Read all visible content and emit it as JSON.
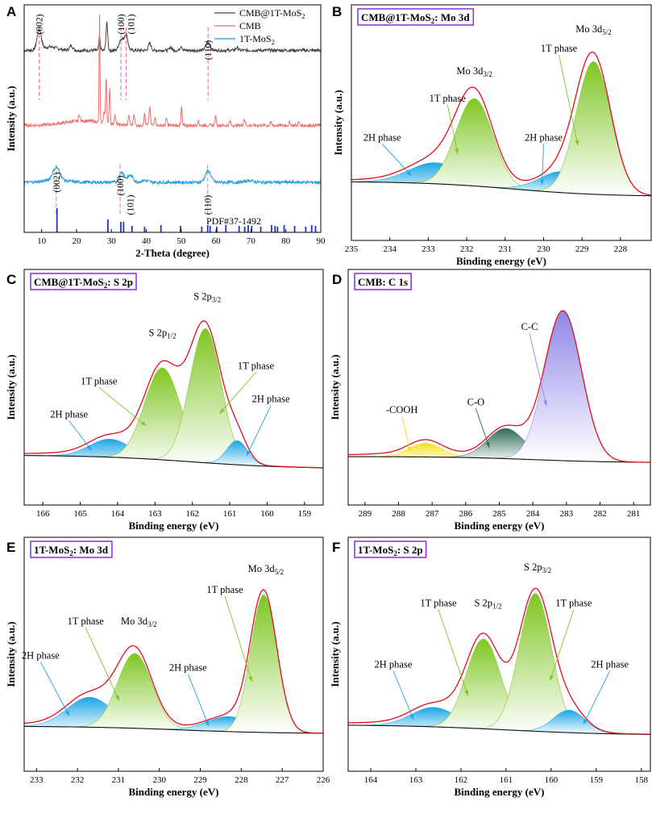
{
  "chart_data": [
    {
      "panel": "A",
      "type": "line",
      "xlabel": "2-Theta (degree)",
      "ylabel": "Intensity (a.u.)",
      "xlim": [
        5,
        90
      ],
      "xticks": [
        10,
        20,
        30,
        40,
        50,
        60,
        70,
        80,
        90
      ],
      "series": [
        {
          "name": "CMB@1T-MoS",
          "sub": "2",
          "color": "#404040",
          "offset": 0.8
        },
        {
          "name": "CMB",
          "sub": "",
          "color": "#ef6f6c",
          "offset": 0.47
        },
        {
          "name": "1T-MoS",
          "sub": "2",
          "color": "#1e9be0",
          "offset": 0.22
        }
      ],
      "peak_labels_top": [
        {
          "label": "(002)",
          "x": 9.3
        },
        {
          "label": "(100)",
          "x": 32.7
        },
        {
          "label": "(101)",
          "x": 35.6
        },
        {
          "label": "(110)",
          "x": 57.7
        }
      ],
      "peak_labels_bottom": [
        {
          "label": "(002)",
          "x": 14.2
        },
        {
          "label": "(100)",
          "x": 32.5
        },
        {
          "label": "(101)",
          "x": 35.4
        },
        {
          "label": "(110)",
          "x": 57.6
        }
      ],
      "dashed_top": [
        9.3,
        32.7,
        34.2,
        57.7
      ],
      "dashed_bottom": [
        14.2,
        32.5,
        57.6
      ],
      "reference_label": "PDF#37-1492",
      "reference_lines": [
        14.4,
        29.0,
        32.7,
        33.5,
        35.9,
        39.5,
        44.2,
        49.8,
        55.9,
        57.6,
        58.3,
        60.2,
        62.8,
        66.6,
        68.2,
        69.2,
        70.2,
        72.8,
        75.9,
        76.9,
        77.6,
        79.5,
        82.5,
        85.7,
        87.4,
        88.5
      ]
    },
    {
      "panel": "B",
      "type": "area",
      "title_main": "CMB@1T-MoS",
      "title_sub": "2",
      "title_tail": ": Mo 3d",
      "xlabel": "Binding energy (eV)",
      "ylabel": "Intensity (a.u.)",
      "xlim": [
        235,
        227.2
      ],
      "xticks": [
        235,
        234,
        233,
        232,
        231,
        230,
        229,
        228
      ],
      "ymax": 1.0,
      "background": {
        "high": 0.11,
        "low": 0.01,
        "center": 230.8,
        "width": 1.2
      },
      "peaks": [
        {
          "center": 232.8,
          "height": 0.14,
          "sigma": 0.7,
          "phase": "2H",
          "color": "#1ca6e4"
        },
        {
          "center": 231.8,
          "height": 0.58,
          "sigma": 0.48,
          "phase": "1T",
          "color": "#7fc622"
        },
        {
          "center": 229.5,
          "height": 0.14,
          "sigma": 0.6,
          "phase": "2H",
          "color": "#1ca6e4"
        },
        {
          "center": 228.7,
          "height": 0.88,
          "sigma": 0.45,
          "phase": "1T",
          "color": "#7fc622"
        }
      ],
      "labels": [
        {
          "text": "Mo 3d",
          "sub": "3/2",
          "x": 231.8,
          "y": 0.82
        },
        {
          "text": "Mo 3d",
          "sub": "5/2",
          "x": 228.7,
          "y": 1.1
        },
        {
          "text": "1T phase",
          "x": 232.5,
          "y": 0.64
        },
        {
          "text": "1T phase",
          "x": 229.6,
          "y": 0.97
        },
        {
          "text": "2H phase",
          "x": 234.2,
          "y": 0.38
        },
        {
          "text": "2H phase",
          "x": 230.0,
          "y": 0.38
        }
      ]
    },
    {
      "panel": "C",
      "type": "area",
      "title_main": "CMB@1T-MoS",
      "title_sub": "2",
      "title_tail": ": S 2p",
      "xlabel": "Binding energy (eV)",
      "ylabel": "Intensity (a.u.)",
      "xlim": [
        166.5,
        158.5
      ],
      "xticks": [
        166,
        165,
        164,
        163,
        162,
        161,
        160,
        159
      ],
      "ymax": 1.0,
      "background": {
        "high": 0.05,
        "low": -0.04,
        "center": 162.0,
        "width": 1.3
      },
      "peaks": [
        {
          "center": 164.2,
          "height": 0.12,
          "sigma": 0.55,
          "phase": "2H",
          "color": "#1ca6e4"
        },
        {
          "center": 162.8,
          "height": 0.61,
          "sigma": 0.48,
          "phase": "1T",
          "color": "#7fc622"
        },
        {
          "center": 161.65,
          "height": 0.89,
          "sigma": 0.42,
          "phase": "1T",
          "color": "#7fc622"
        },
        {
          "center": 160.8,
          "height": 0.16,
          "sigma": 0.28,
          "phase": "2H",
          "color": "#1ca6e4"
        }
      ],
      "labels": [
        {
          "text": "S 2p",
          "sub": "1/2",
          "x": 162.8,
          "y": 0.84
        },
        {
          "text": "S 2p",
          "sub": "3/2",
          "x": 161.6,
          "y": 1.08
        },
        {
          "text": "1T phase",
          "x": 164.5,
          "y": 0.52
        },
        {
          "text": "1T phase",
          "x": 160.3,
          "y": 0.62
        },
        {
          "text": "2H phase",
          "x": 165.3,
          "y": 0.3
        },
        {
          "text": "2H phase",
          "x": 159.9,
          "y": 0.4
        }
      ]
    },
    {
      "panel": "D",
      "type": "area",
      "title_main": "CMB: C 1s",
      "title_sub": "",
      "title_tail": "",
      "xlabel": "Binding energy (eV)",
      "ylabel": "Intensity (a.u.)",
      "xlim": [
        289.5,
        280.5
      ],
      "xticks": [
        289,
        288,
        287,
        286,
        285,
        284,
        283,
        282,
        281
      ],
      "ymax": 1.0,
      "background": {
        "high": 0.04,
        "low": 0.0,
        "center": 284.0,
        "width": 1.2
      },
      "peaks": [
        {
          "center": 287.2,
          "height": 0.09,
          "sigma": 0.5,
          "phase": "-COOH",
          "color": "#f2e21c"
        },
        {
          "center": 284.8,
          "height": 0.2,
          "sigma": 0.55,
          "phase": "C-O",
          "color": "#2e6a58"
        },
        {
          "center": 283.1,
          "height": 0.99,
          "sigma": 0.55,
          "phase": "C-C",
          "color": "#8f87e8"
        }
      ],
      "labels": [
        {
          "text": "-COOH",
          "x": 287.9,
          "y": 0.33
        },
        {
          "text": "C-O",
          "x": 285.7,
          "y": 0.38
        },
        {
          "text": "C-C",
          "x": 284.1,
          "y": 0.88
        }
      ]
    },
    {
      "panel": "E",
      "type": "area",
      "title_main": "1T-MoS",
      "title_sub": "2",
      "title_tail": ": Mo 3d",
      "xlabel": "Binding energy (eV)",
      "ylabel": "Intensity (a.u.)",
      "xlim": [
        233.3,
        226
      ],
      "xticks": [
        233,
        232,
        231,
        230,
        229,
        228,
        227,
        226
      ],
      "ymax": 1.0,
      "background": {
        "high": 0.02,
        "low": -0.03,
        "center": 229.5,
        "width": 1.2
      },
      "peaks": [
        {
          "center": 231.7,
          "height": 0.2,
          "sigma": 0.55,
          "phase": "2H",
          "color": "#1ca6e4"
        },
        {
          "center": 230.6,
          "height": 0.5,
          "sigma": 0.42,
          "phase": "1T",
          "color": "#7fc622"
        },
        {
          "center": 228.3,
          "height": 0.1,
          "sigma": 0.55,
          "phase": "2H",
          "color": "#1ca6e4"
        },
        {
          "center": 227.45,
          "height": 0.92,
          "sigma": 0.32,
          "phase": "1T",
          "color": "#7fc622"
        }
      ],
      "labels": [
        {
          "text": "Mo 3d",
          "sub": "3/2",
          "x": 230.5,
          "y": 0.7
        },
        {
          "text": "Mo 3d",
          "sub": "5/2",
          "x": 227.4,
          "y": 1.05
        },
        {
          "text": "1T phase",
          "x": 231.8,
          "y": 0.7
        },
        {
          "text": "1T phase",
          "x": 228.4,
          "y": 0.91
        },
        {
          "text": "2H phase",
          "x": 232.9,
          "y": 0.47
        },
        {
          "text": "2H phase",
          "x": 229.3,
          "y": 0.39
        }
      ]
    },
    {
      "panel": "F",
      "type": "area",
      "title_main": "1T-MoS",
      "title_sub": "2",
      "title_tail": ": S 2p",
      "xlabel": "Binding energy (eV)",
      "ylabel": "Intensity (a.u.)",
      "xlim": [
        164.5,
        157.8
      ],
      "xticks": [
        164,
        163,
        162,
        161,
        160,
        159,
        158
      ],
      "ymax": 1.0,
      "background": {
        "high": 0.03,
        "low": -0.04,
        "center": 161.0,
        "width": 1.2
      },
      "peaks": [
        {
          "center": 162.6,
          "height": 0.13,
          "sigma": 0.5,
          "phase": "2H",
          "color": "#1ca6e4"
        },
        {
          "center": 161.5,
          "height": 0.6,
          "sigma": 0.38,
          "phase": "1T",
          "color": "#7fc622"
        },
        {
          "center": 160.35,
          "height": 0.92,
          "sigma": 0.36,
          "phase": "1T",
          "color": "#7fc622"
        },
        {
          "center": 159.6,
          "height": 0.15,
          "sigma": 0.35,
          "phase": "2H",
          "color": "#1ca6e4"
        }
      ],
      "labels": [
        {
          "text": "S 2p",
          "sub": "1/2",
          "x": 161.4,
          "y": 0.82
        },
        {
          "text": "S 2p",
          "sub": "3/2",
          "x": 160.3,
          "y": 1.06
        },
        {
          "text": "1T phase",
          "x": 162.5,
          "y": 0.82
        },
        {
          "text": "1T phase",
          "x": 159.5,
          "y": 0.82
        },
        {
          "text": "2H phase",
          "x": 163.5,
          "y": 0.41
        },
        {
          "text": "2H phase",
          "x": 158.7,
          "y": 0.41
        }
      ]
    }
  ]
}
